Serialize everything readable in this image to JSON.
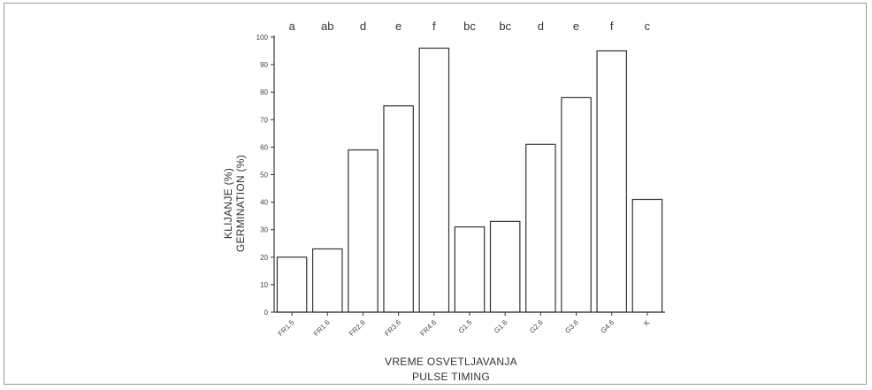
{
  "chart_data": {
    "type": "bar",
    "categories": [
      "FR1.5",
      "FR1.6",
      "FR2.6",
      "FR3.6",
      "FR4.6",
      "G1.5",
      "G1.6",
      "G2.6",
      "G3.6",
      "G4.6",
      "K"
    ],
    "values": [
      20,
      23,
      59,
      75,
      96,
      31,
      33,
      61,
      78,
      95,
      41
    ],
    "group_letters": [
      "a",
      "ab",
      "d",
      "e",
      "f",
      "bc",
      "bc",
      "d",
      "e",
      "f",
      "c"
    ],
    "xlabel": [
      "VREME OSVETLJAVANJA",
      "PULSE TIMING"
    ],
    "ylabel": [
      "KLIJANJE (%)",
      "GERMINATION (%)"
    ],
    "ylim": [
      0,
      100
    ],
    "yticks": [
      0,
      10,
      20,
      30,
      40,
      50,
      60,
      70,
      80,
      90,
      100
    ],
    "grid": false,
    "colors": {
      "bar_fill": "#ffffff",
      "bar_stroke": "#333333"
    }
  }
}
